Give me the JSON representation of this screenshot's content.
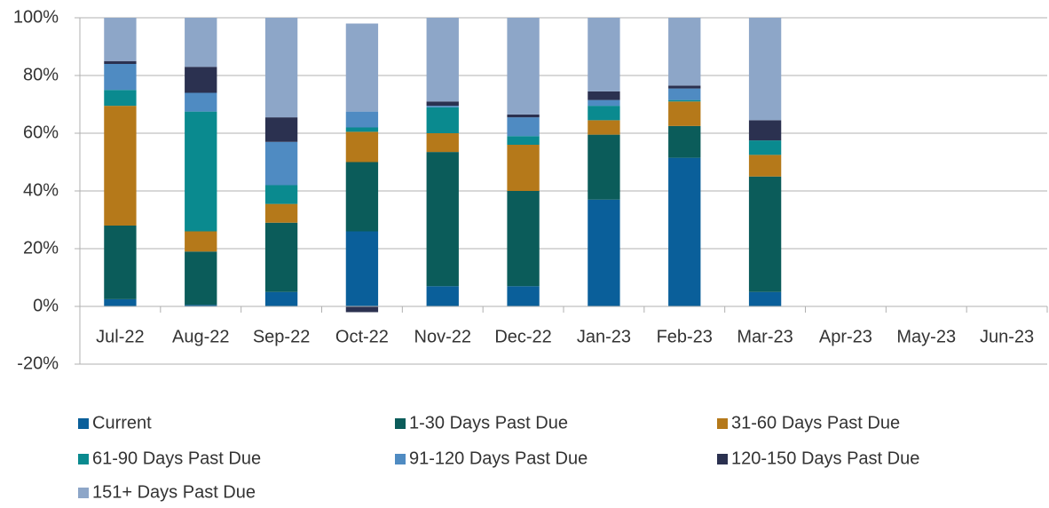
{
  "chart_data": {
    "type": "stacked_bar",
    "categories": [
      "Jul-22",
      "Aug-22",
      "Sep-22",
      "Oct-22",
      "Nov-22",
      "Dec-22",
      "Jan-23",
      "Feb-23",
      "Mar-23",
      "Apr-23",
      "May-23",
      "Jun-23"
    ],
    "series": [
      {
        "name": "Current",
        "color": "#0a5f9a",
        "values": [
          2.5,
          0.5,
          5,
          26,
          7,
          7,
          37,
          51.5,
          5,
          null,
          null,
          null
        ]
      },
      {
        "name": "1-30 Days Past Due",
        "color": "#0b5c5a",
        "values": [
          25.5,
          18.5,
          24,
          24,
          46.5,
          33,
          22.5,
          11,
          40,
          null,
          null,
          null
        ]
      },
      {
        "name": "31-60 Days Past Due",
        "color": "#b5791a",
        "values": [
          41.5,
          7,
          6.5,
          10.5,
          6.5,
          16,
          5,
          8.5,
          7.5,
          null,
          null,
          null
        ]
      },
      {
        "name": "61-90 Days Past Due",
        "color": "#0a8a8f",
        "values": [
          5.5,
          41.5,
          6.5,
          1.5,
          9,
          3,
          5,
          0.5,
          5,
          null,
          null,
          null
        ]
      },
      {
        "name": "91-120 Days Past Due",
        "color": "#4f8bc2",
        "values": [
          9,
          6.5,
          15,
          5.5,
          0.5,
          6.5,
          2,
          4,
          0,
          null,
          null,
          null
        ]
      },
      {
        "name": "120-150 Days Past Due",
        "color": "#2b3150",
        "values": [
          1,
          9,
          8.5,
          -2,
          1.5,
          1,
          3,
          1,
          7,
          null,
          null,
          null
        ]
      },
      {
        "name": "151+ Days Past Due",
        "color": "#8da6c8",
        "values": [
          15,
          17,
          34.5,
          30.5,
          29,
          33.5,
          25.5,
          23.5,
          35.5,
          null,
          null,
          null
        ]
      }
    ],
    "ylim": [
      -20,
      100
    ],
    "yticks": [
      {
        "value": -20,
        "label": "-20%"
      },
      {
        "value": 0,
        "label": "0%"
      },
      {
        "value": 20,
        "label": "20%"
      },
      {
        "value": 40,
        "label": "40%"
      },
      {
        "value": 60,
        "label": "60%"
      },
      {
        "value": 80,
        "label": "80%"
      },
      {
        "value": 100,
        "label": "100%"
      }
    ],
    "grid": true,
    "legend": "bottom"
  }
}
